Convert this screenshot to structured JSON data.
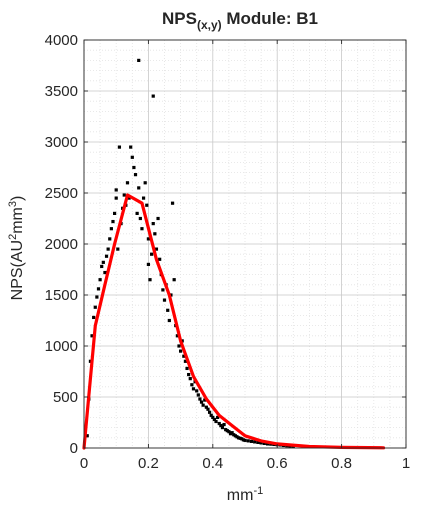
{
  "figure": {
    "title_main": "NPS",
    "title_sub": "(x,y)",
    "title_rest": " Module: B1",
    "ylabel_main": "NPS(AU",
    "ylabel_sup1": "2",
    "ylabel_mid": "mm",
    "ylabel_sup2": "3",
    "ylabel_end": ")",
    "xlabel_main": "mm",
    "xlabel_sup": "-1"
  },
  "chart_data": {
    "type": "scatter",
    "title": "NPS(x,y) Module: B1",
    "xlabel": "mm^-1",
    "ylabel": "NPS(AU^2mm^3)",
    "xlim": [
      0,
      1
    ],
    "ylim": [
      0,
      4000
    ],
    "xticks": [
      0,
      0.2,
      0.4,
      0.6,
      0.8,
      1
    ],
    "xtick_labels": [
      "0",
      "0.2",
      "0.4",
      "0.6",
      "0.8",
      "1"
    ],
    "yticks": [
      0,
      500,
      1000,
      1500,
      2000,
      2500,
      3000,
      3500,
      4000
    ],
    "ytick_labels": [
      "0",
      "500",
      "1000",
      "1500",
      "2000",
      "2500",
      "3000",
      "3500",
      "4000"
    ],
    "grid": "major and minor, dotted",
    "series": [
      {
        "kind": "points",
        "color": "#000000",
        "points": [
          [
            0.01,
            120
          ],
          [
            0.015,
            480
          ],
          [
            0.02,
            850
          ],
          [
            0.025,
            1100
          ],
          [
            0.03,
            1280
          ],
          [
            0.035,
            1380
          ],
          [
            0.04,
            1480
          ],
          [
            0.045,
            1560
          ],
          [
            0.05,
            1650
          ],
          [
            0.055,
            1780
          ],
          [
            0.06,
            1820
          ],
          [
            0.065,
            1720
          ],
          [
            0.07,
            1880
          ],
          [
            0.075,
            1950
          ],
          [
            0.08,
            2050
          ],
          [
            0.085,
            2150
          ],
          [
            0.09,
            2220
          ],
          [
            0.095,
            2300
          ],
          [
            0.1,
            2450
          ],
          [
            0.1,
            2530
          ],
          [
            0.105,
            1950
          ],
          [
            0.11,
            2950
          ],
          [
            0.115,
            2200
          ],
          [
            0.12,
            2350
          ],
          [
            0.125,
            2480
          ],
          [
            0.13,
            2380
          ],
          [
            0.135,
            2600
          ],
          [
            0.14,
            2450
          ],
          [
            0.145,
            2950
          ],
          [
            0.15,
            2850
          ],
          [
            0.155,
            2750
          ],
          [
            0.16,
            2680
          ],
          [
            0.165,
            2300
          ],
          [
            0.17,
            2550
          ],
          [
            0.17,
            3800
          ],
          [
            0.175,
            2250
          ],
          [
            0.18,
            2150
          ],
          [
            0.185,
            2450
          ],
          [
            0.19,
            2600
          ],
          [
            0.195,
            2380
          ],
          [
            0.2,
            2050
          ],
          [
            0.2,
            1800
          ],
          [
            0.205,
            1650
          ],
          [
            0.21,
            1900
          ],
          [
            0.215,
            2200
          ],
          [
            0.215,
            3450
          ],
          [
            0.22,
            2100
          ],
          [
            0.225,
            1950
          ],
          [
            0.23,
            2250
          ],
          [
            0.235,
            1850
          ],
          [
            0.24,
            1700
          ],
          [
            0.245,
            1550
          ],
          [
            0.25,
            1450
          ],
          [
            0.255,
            1600
          ],
          [
            0.26,
            1350
          ],
          [
            0.265,
            1250
          ],
          [
            0.27,
            1500
          ],
          [
            0.275,
            2400
          ],
          [
            0.28,
            1650
          ],
          [
            0.285,
            1200
          ],
          [
            0.29,
            1100
          ],
          [
            0.295,
            1000
          ],
          [
            0.3,
            950
          ],
          [
            0.305,
            1050
          ],
          [
            0.31,
            900
          ],
          [
            0.315,
            850
          ],
          [
            0.32,
            780
          ],
          [
            0.325,
            720
          ],
          [
            0.33,
            680
          ],
          [
            0.335,
            620
          ],
          [
            0.34,
            580
          ],
          [
            0.345,
            650
          ],
          [
            0.35,
            560
          ],
          [
            0.355,
            520
          ],
          [
            0.36,
            480
          ],
          [
            0.365,
            450
          ],
          [
            0.37,
            420
          ],
          [
            0.375,
            470
          ],
          [
            0.38,
            400
          ],
          [
            0.385,
            380
          ],
          [
            0.39,
            350
          ],
          [
            0.395,
            320
          ],
          [
            0.4,
            300
          ],
          [
            0.405,
            280
          ],
          [
            0.41,
            260
          ],
          [
            0.415,
            300
          ],
          [
            0.42,
            240
          ],
          [
            0.425,
            220
          ],
          [
            0.43,
            200
          ],
          [
            0.435,
            230
          ],
          [
            0.44,
            180
          ],
          [
            0.445,
            170
          ],
          [
            0.45,
            160
          ],
          [
            0.455,
            140
          ],
          [
            0.46,
            150
          ],
          [
            0.465,
            130
          ],
          [
            0.47,
            120
          ],
          [
            0.475,
            110
          ],
          [
            0.48,
            100
          ],
          [
            0.485,
            95
          ],
          [
            0.49,
            90
          ],
          [
            0.495,
            80
          ],
          [
            0.5,
            75
          ],
          [
            0.51,
            70
          ],
          [
            0.52,
            65
          ],
          [
            0.53,
            60
          ],
          [
            0.54,
            55
          ],
          [
            0.55,
            50
          ],
          [
            0.56,
            45
          ],
          [
            0.57,
            40
          ],
          [
            0.58,
            38
          ],
          [
            0.59,
            35
          ],
          [
            0.6,
            32
          ],
          [
            0.61,
            30
          ],
          [
            0.62,
            25
          ],
          [
            0.63,
            22
          ],
          [
            0.64,
            20
          ],
          [
            0.65,
            18
          ]
        ]
      },
      {
        "kind": "line",
        "color": "#ff0000",
        "points": [
          [
            0,
            0
          ],
          [
            0.035,
            1200
          ],
          [
            0.065,
            1600
          ],
          [
            0.095,
            2000
          ],
          [
            0.135,
            2480
          ],
          [
            0.18,
            2400
          ],
          [
            0.225,
            1850
          ],
          [
            0.265,
            1500
          ],
          [
            0.3,
            1050
          ],
          [
            0.34,
            700
          ],
          [
            0.38,
            480
          ],
          [
            0.42,
            320
          ],
          [
            0.46,
            220
          ],
          [
            0.5,
            120
          ],
          [
            0.55,
            70
          ],
          [
            0.6,
            40
          ],
          [
            0.7,
            15
          ],
          [
            0.8,
            6
          ],
          [
            0.93,
            2
          ]
        ]
      }
    ]
  }
}
